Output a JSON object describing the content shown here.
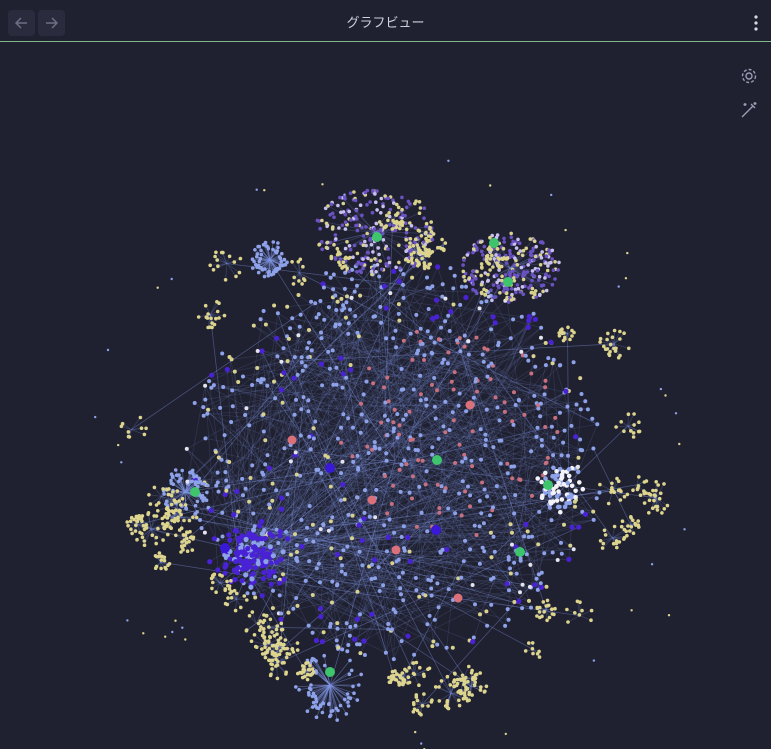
{
  "header": {
    "title": "グラフビュー"
  }
}
